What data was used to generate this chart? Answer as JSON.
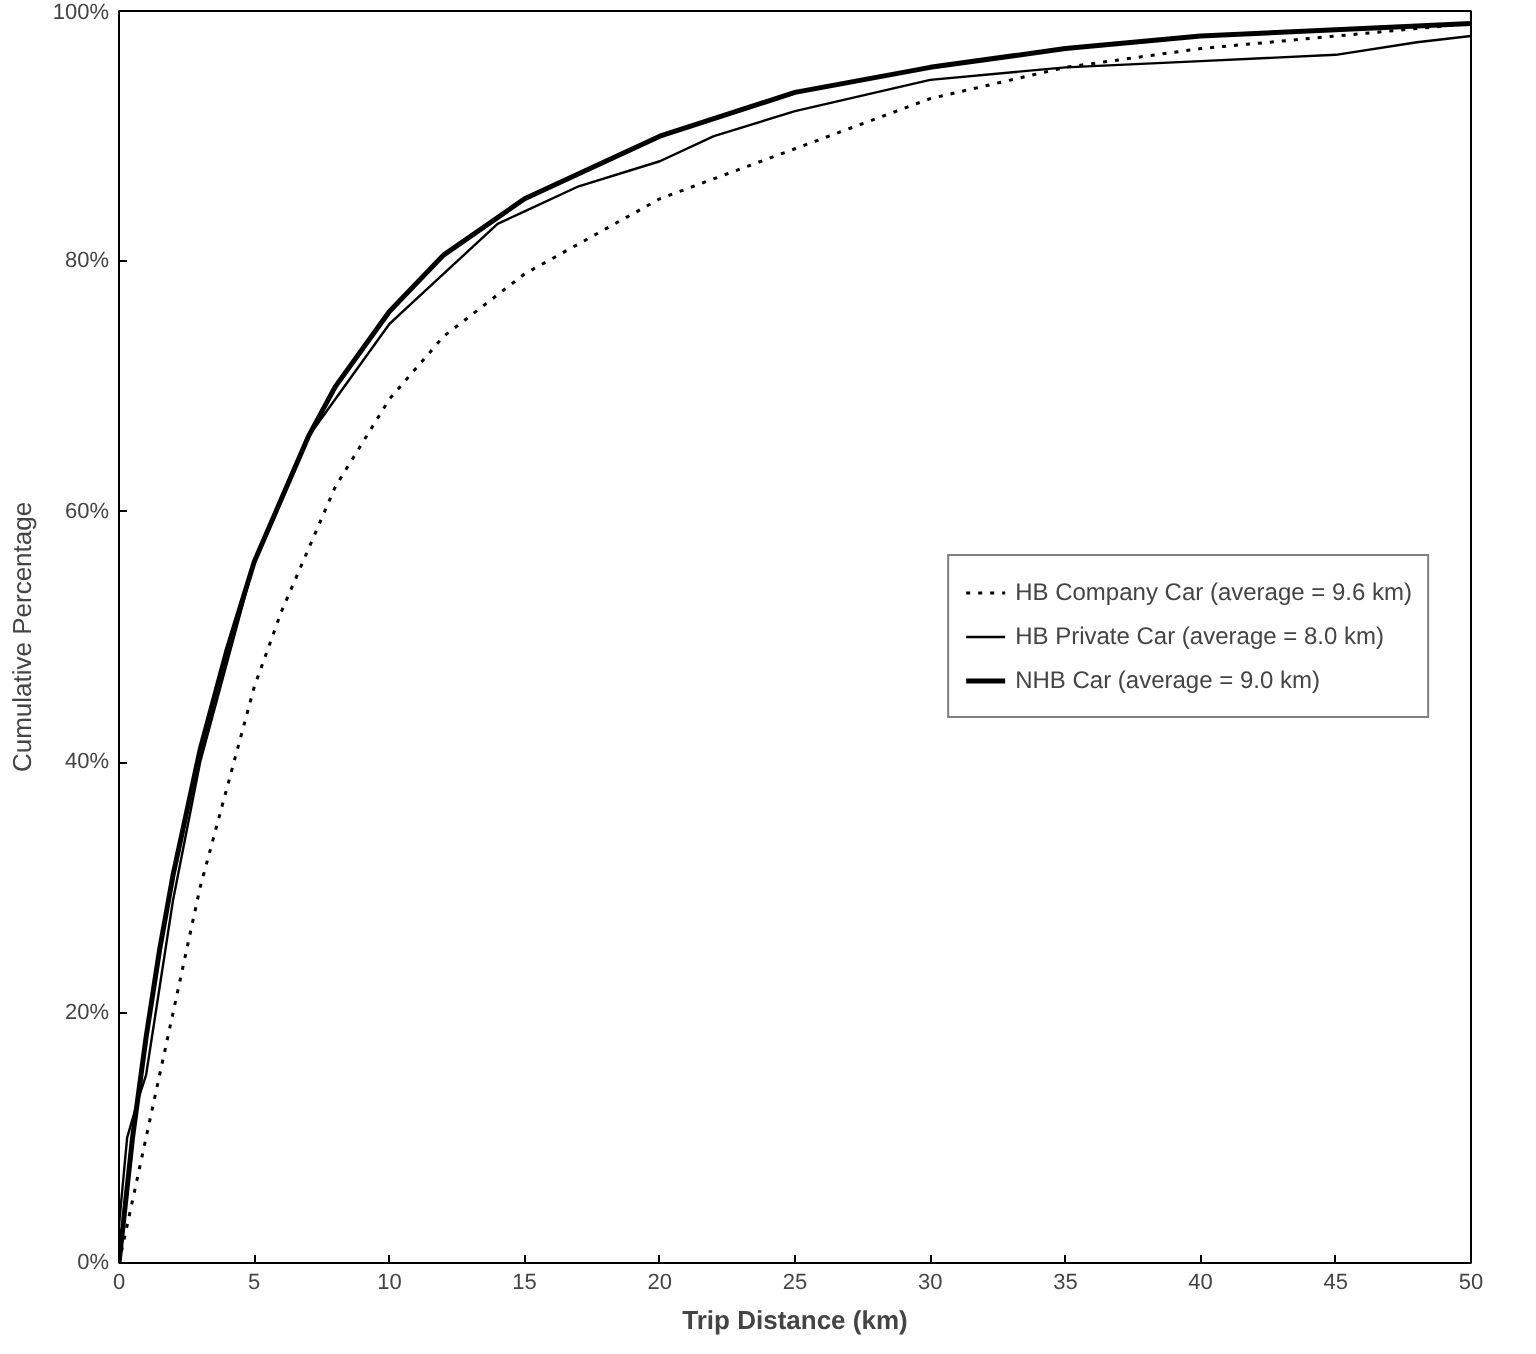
{
  "chart_data": {
    "type": "line",
    "xlabel": "Trip Distance (km)",
    "ylabel": "Cumulative Percentage",
    "xlim": [
      0,
      50
    ],
    "ylim": [
      0,
      100
    ],
    "xticks": [
      0,
      5,
      10,
      15,
      20,
      25,
      30,
      35,
      40,
      45,
      50
    ],
    "yticks": [
      {
        "value": 0,
        "label": "0%"
      },
      {
        "value": 20,
        "label": "20%"
      },
      {
        "value": 40,
        "label": "40%"
      },
      {
        "value": 60,
        "label": "60%"
      },
      {
        "value": 80,
        "label": "80%"
      },
      {
        "value": 100,
        "label": "100%"
      }
    ],
    "grid": false,
    "legend": "right",
    "marker": "none",
    "series": [
      {
        "name": "HB Company Car (average = 9.6 km)",
        "color": "#000000",
        "line_style": "dotted",
        "x": [
          0,
          1,
          2,
          3,
          4,
          5,
          6,
          7,
          8,
          10,
          12,
          15,
          20,
          25,
          30,
          35,
          40,
          45,
          50
        ],
        "values": [
          0,
          10,
          20,
          30,
          38,
          46,
          52,
          57,
          62,
          69,
          74,
          79,
          85,
          89,
          93,
          95.5,
          97,
          98,
          99
        ]
      },
      {
        "name": "HB Private Car (average = 8.0 km)",
        "color": "#000000",
        "line_style": "solid",
        "x": [
          0,
          0.3,
          0.7,
          1,
          2,
          3,
          5,
          7,
          9,
          10,
          10.5,
          12,
          14,
          15,
          17,
          20,
          22,
          25,
          27,
          30,
          35,
          40,
          45,
          48,
          50
        ],
        "values": [
          3,
          10,
          13,
          15,
          29,
          40,
          56,
          66,
          72,
          75,
          76,
          79,
          83,
          84,
          86,
          88,
          90,
          92,
          93,
          94.5,
          95.5,
          96,
          96.5,
          97.5,
          98
        ]
      },
      {
        "name": "NHB Car (average = 9.0 km)",
        "color": "#000000",
        "line_style": "solid",
        "x": [
          0,
          0.5,
          1,
          1.5,
          2,
          3,
          4,
          5,
          6,
          7,
          8,
          10,
          12,
          15,
          20,
          25,
          30,
          35,
          40,
          45,
          50
        ],
        "values": [
          0,
          10,
          18,
          25,
          31,
          41,
          49,
          56,
          61,
          66,
          70,
          76,
          80.5,
          85,
          90,
          93.5,
          95.5,
          97,
          98,
          98.5,
          99
        ]
      }
    ]
  }
}
